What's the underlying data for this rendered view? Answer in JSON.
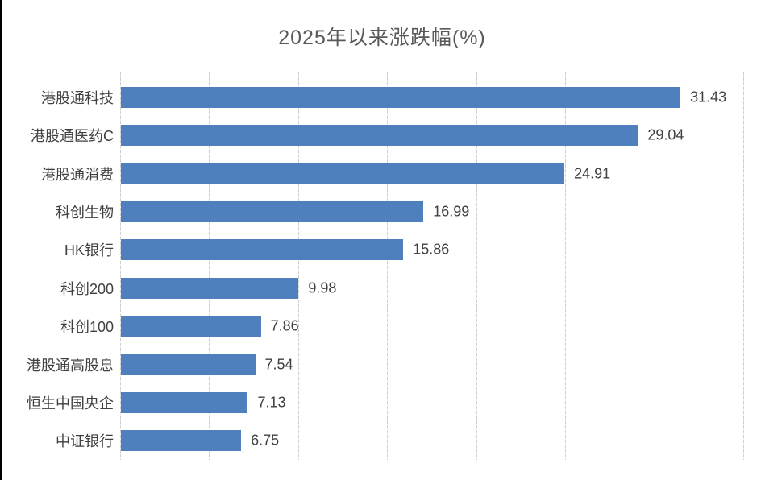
{
  "chart_data": {
    "type": "bar",
    "orientation": "horizontal",
    "title": "2025年以来涨跌幅(%)",
    "categories": [
      "港股通科技",
      "港股通医药C",
      "港股通消费",
      "科创生物",
      "HK银行",
      "科创200",
      "科创100",
      "港股通高股息",
      "恒生中国央企",
      "中证银行"
    ],
    "values": [
      31.43,
      29.04,
      24.91,
      16.99,
      15.86,
      9.98,
      7.86,
      7.54,
      7.13,
      6.75
    ],
    "value_labels": [
      "31.43",
      "29.04",
      "24.91",
      "16.99",
      "15.86",
      "9.98",
      "7.86",
      "7.54",
      "7.13",
      "6.75"
    ],
    "xlabel": "",
    "ylabel": "",
    "xlim": [
      0,
      35
    ],
    "grid_step": 5,
    "grid_on": true,
    "legend": null,
    "colors": {
      "bar": "#4E80BD",
      "gridline": "#CFCFCF",
      "title_text": "#595959",
      "label_text": "#404040",
      "background": "#FFFFFF"
    }
  }
}
